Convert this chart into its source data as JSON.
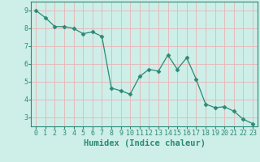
{
  "x": [
    0,
    1,
    2,
    3,
    4,
    5,
    6,
    7,
    8,
    9,
    10,
    11,
    12,
    13,
    14,
    15,
    16,
    17,
    18,
    19,
    20,
    21,
    22,
    23
  ],
  "y": [
    9.0,
    8.6,
    8.1,
    8.1,
    8.0,
    7.7,
    7.8,
    7.55,
    4.65,
    4.5,
    4.3,
    5.3,
    5.7,
    5.6,
    6.5,
    5.7,
    6.35,
    5.15,
    3.75,
    3.55,
    3.6,
    3.35,
    2.9,
    2.65
  ],
  "line_color": "#2a8a76",
  "marker": "D",
  "marker_size": 2.5,
  "xlabel": "Humidex (Indice chaleur)",
  "xlim": [
    -0.5,
    23.5
  ],
  "ylim": [
    2.5,
    9.5
  ],
  "yticks": [
    3,
    4,
    5,
    6,
    7,
    8,
    9
  ],
  "xticks": [
    0,
    1,
    2,
    3,
    4,
    5,
    6,
    7,
    8,
    9,
    10,
    11,
    12,
    13,
    14,
    15,
    16,
    17,
    18,
    19,
    20,
    21,
    22,
    23
  ],
  "bg_color": "#ceeee8",
  "grid_color": "#e8b4b8",
  "axis_color": "#2a8a76",
  "xlabel_fontsize": 7.5,
  "tick_fontsize": 6.0
}
